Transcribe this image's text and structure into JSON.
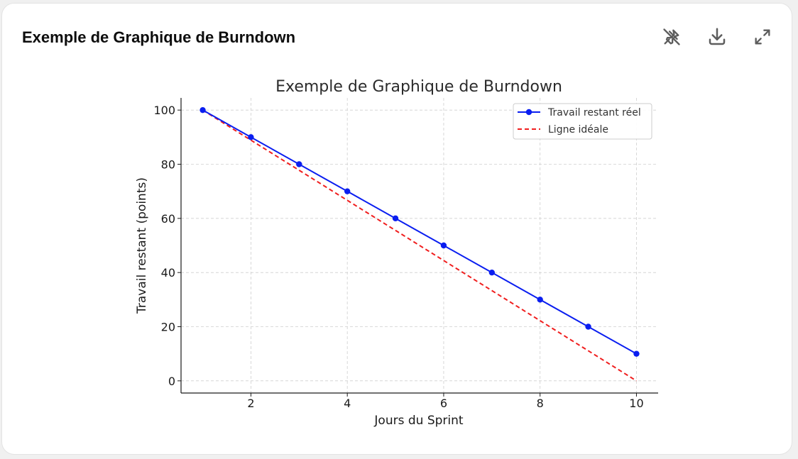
{
  "card": {
    "title": "Exemple de Graphique de Burndown",
    "toolbar": [
      {
        "icon": "unpin-icon",
        "label": "Unpin"
      },
      {
        "icon": "download-icon",
        "label": "Download"
      },
      {
        "icon": "expand-icon",
        "label": "Expand"
      }
    ]
  },
  "chart_data": {
    "type": "line",
    "title": "Exemple de Graphique de Burndown",
    "xlabel": "Jours du Sprint",
    "ylabel": "Travail restant (points)",
    "xlim": [
      0.55,
      10.45
    ],
    "ylim": [
      -4.5,
      104.5
    ],
    "xticks": [
      2,
      4,
      6,
      8,
      10
    ],
    "yticks": [
      0,
      20,
      40,
      60,
      80,
      100
    ],
    "grid": true,
    "legend_position": "top-right",
    "x": [
      1,
      2,
      3,
      4,
      5,
      6,
      7,
      8,
      9,
      10
    ],
    "series": [
      {
        "name": "Travail restant réel",
        "values": [
          100,
          90,
          80,
          70,
          60,
          50,
          40,
          30,
          20,
          10
        ],
        "color": "#0a1ef0",
        "style": "solid",
        "marker": "circle"
      },
      {
        "name": "Ligne idéale",
        "values": [
          100,
          88.89,
          77.78,
          66.67,
          55.56,
          44.44,
          33.33,
          22.22,
          11.11,
          0
        ],
        "color": "#f01e1e",
        "style": "dashed",
        "marker": "none"
      }
    ]
  }
}
